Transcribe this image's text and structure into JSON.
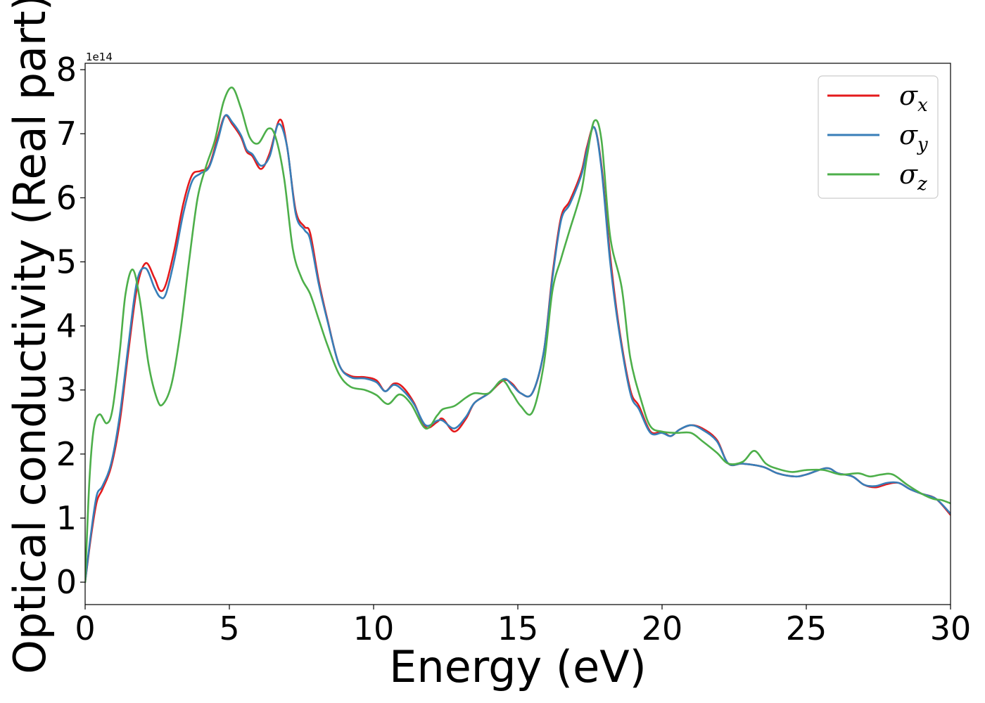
{
  "chart_data": {
    "type": "line",
    "title": "",
    "xlabel": "Energy (eV)",
    "ylabel": "Optical conductivity (Real part)",
    "y_offset_label": "1e14",
    "xlim": [
      0,
      30
    ],
    "ylim": [
      -0.35,
      8.1
    ],
    "x_ticks": [
      0,
      5,
      10,
      15,
      20,
      25,
      30
    ],
    "x_tick_labels": [
      "0",
      "5",
      "10",
      "15",
      "20",
      "25",
      "30"
    ],
    "y_ticks": [
      0,
      1,
      2,
      3,
      4,
      5,
      6,
      7,
      8
    ],
    "y_tick_labels": [
      "0",
      "1",
      "2",
      "3",
      "4",
      "5",
      "6",
      "7",
      "8"
    ],
    "grid": false,
    "legend_position": "top-right",
    "series": [
      {
        "name_base": "σ",
        "name_sub": "x",
        "color": "#e41a1c",
        "points": [
          [
            0,
            0
          ],
          [
            0.2,
            0.7
          ],
          [
            0.4,
            1.25
          ],
          [
            0.6,
            1.45
          ],
          [
            0.9,
            1.8
          ],
          [
            1.2,
            2.5
          ],
          [
            1.5,
            3.6
          ],
          [
            1.8,
            4.6
          ],
          [
            2.1,
            4.98
          ],
          [
            2.4,
            4.75
          ],
          [
            2.6,
            4.55
          ],
          [
            2.8,
            4.65
          ],
          [
            3.1,
            5.2
          ],
          [
            3.4,
            5.9
          ],
          [
            3.7,
            6.35
          ],
          [
            4.0,
            6.42
          ],
          [
            4.3,
            6.5
          ],
          [
            4.6,
            6.95
          ],
          [
            4.85,
            7.28
          ],
          [
            5.1,
            7.15
          ],
          [
            5.4,
            6.95
          ],
          [
            5.6,
            6.72
          ],
          [
            5.8,
            6.65
          ],
          [
            6.1,
            6.45
          ],
          [
            6.4,
            6.7
          ],
          [
            6.75,
            7.22
          ],
          [
            7.0,
            6.8
          ],
          [
            7.3,
            5.8
          ],
          [
            7.6,
            5.55
          ],
          [
            7.8,
            5.45
          ],
          [
            8.1,
            4.7
          ],
          [
            8.4,
            4.1
          ],
          [
            8.8,
            3.4
          ],
          [
            9.2,
            3.22
          ],
          [
            9.7,
            3.2
          ],
          [
            10.1,
            3.15
          ],
          [
            10.4,
            2.98
          ],
          [
            10.7,
            3.1
          ],
          [
            11.0,
            3.05
          ],
          [
            11.4,
            2.8
          ],
          [
            11.8,
            2.42
          ],
          [
            12.2,
            2.5
          ],
          [
            12.4,
            2.55
          ],
          [
            12.8,
            2.35
          ],
          [
            13.2,
            2.55
          ],
          [
            13.5,
            2.8
          ],
          [
            14.0,
            2.95
          ],
          [
            14.5,
            3.15
          ],
          [
            14.8,
            3.1
          ],
          [
            15.1,
            2.95
          ],
          [
            15.5,
            2.95
          ],
          [
            15.9,
            3.6
          ],
          [
            16.2,
            4.8
          ],
          [
            16.5,
            5.7
          ],
          [
            16.8,
            5.95
          ],
          [
            17.2,
            6.4
          ],
          [
            17.4,
            6.8
          ],
          [
            17.65,
            7.1
          ],
          [
            17.9,
            6.5
          ],
          [
            18.2,
            5.1
          ],
          [
            18.5,
            4.0
          ],
          [
            18.9,
            3.0
          ],
          [
            19.2,
            2.75
          ],
          [
            19.6,
            2.35
          ],
          [
            20.0,
            2.35
          ],
          [
            20.3,
            2.28
          ],
          [
            20.6,
            2.38
          ],
          [
            21.0,
            2.45
          ],
          [
            21.4,
            2.4
          ],
          [
            21.9,
            2.22
          ],
          [
            22.3,
            1.85
          ],
          [
            22.8,
            1.85
          ],
          [
            23.5,
            1.8
          ],
          [
            24.0,
            1.7
          ],
          [
            24.6,
            1.65
          ],
          [
            25.0,
            1.68
          ],
          [
            25.7,
            1.78
          ],
          [
            26.1,
            1.7
          ],
          [
            26.6,
            1.65
          ],
          [
            27.0,
            1.52
          ],
          [
            27.4,
            1.48
          ],
          [
            27.8,
            1.53
          ],
          [
            28.2,
            1.55
          ],
          [
            28.6,
            1.45
          ],
          [
            29.0,
            1.38
          ],
          [
            29.5,
            1.3
          ],
          [
            30.0,
            1.05
          ]
        ]
      },
      {
        "name_base": "σ",
        "name_sub": "y",
        "color": "#377eb8",
        "points": [
          [
            0,
            0
          ],
          [
            0.2,
            0.75
          ],
          [
            0.4,
            1.35
          ],
          [
            0.6,
            1.5
          ],
          [
            0.9,
            1.85
          ],
          [
            1.2,
            2.6
          ],
          [
            1.5,
            3.7
          ],
          [
            1.8,
            4.7
          ],
          [
            2.1,
            4.9
          ],
          [
            2.4,
            4.6
          ],
          [
            2.6,
            4.45
          ],
          [
            2.8,
            4.5
          ],
          [
            3.1,
            5.05
          ],
          [
            3.4,
            5.75
          ],
          [
            3.7,
            6.25
          ],
          [
            4.0,
            6.38
          ],
          [
            4.3,
            6.48
          ],
          [
            4.6,
            6.9
          ],
          [
            4.85,
            7.28
          ],
          [
            5.1,
            7.18
          ],
          [
            5.4,
            6.98
          ],
          [
            5.6,
            6.75
          ],
          [
            5.8,
            6.68
          ],
          [
            6.1,
            6.5
          ],
          [
            6.4,
            6.65
          ],
          [
            6.7,
            7.15
          ],
          [
            7.0,
            6.8
          ],
          [
            7.3,
            5.75
          ],
          [
            7.6,
            5.5
          ],
          [
            7.8,
            5.35
          ],
          [
            8.1,
            4.65
          ],
          [
            8.4,
            4.08
          ],
          [
            8.8,
            3.4
          ],
          [
            9.2,
            3.2
          ],
          [
            9.7,
            3.18
          ],
          [
            10.1,
            3.12
          ],
          [
            10.4,
            2.98
          ],
          [
            10.7,
            3.08
          ],
          [
            11.0,
            3.0
          ],
          [
            11.4,
            2.78
          ],
          [
            11.8,
            2.45
          ],
          [
            12.2,
            2.52
          ],
          [
            12.4,
            2.52
          ],
          [
            12.8,
            2.4
          ],
          [
            13.2,
            2.58
          ],
          [
            13.5,
            2.8
          ],
          [
            14.0,
            2.95
          ],
          [
            14.5,
            3.17
          ],
          [
            14.8,
            3.08
          ],
          [
            15.1,
            2.95
          ],
          [
            15.5,
            2.95
          ],
          [
            15.9,
            3.6
          ],
          [
            16.2,
            4.75
          ],
          [
            16.5,
            5.65
          ],
          [
            16.8,
            5.9
          ],
          [
            17.2,
            6.35
          ],
          [
            17.4,
            6.75
          ],
          [
            17.65,
            7.1
          ],
          [
            17.9,
            6.45
          ],
          [
            18.2,
            5.0
          ],
          [
            18.5,
            3.95
          ],
          [
            18.9,
            2.95
          ],
          [
            19.2,
            2.7
          ],
          [
            19.6,
            2.33
          ],
          [
            20.0,
            2.33
          ],
          [
            20.3,
            2.28
          ],
          [
            20.6,
            2.38
          ],
          [
            21.0,
            2.45
          ],
          [
            21.4,
            2.38
          ],
          [
            21.9,
            2.2
          ],
          [
            22.3,
            1.85
          ],
          [
            22.8,
            1.85
          ],
          [
            23.5,
            1.8
          ],
          [
            24.0,
            1.7
          ],
          [
            24.6,
            1.65
          ],
          [
            25.0,
            1.68
          ],
          [
            25.7,
            1.78
          ],
          [
            26.1,
            1.7
          ],
          [
            26.6,
            1.65
          ],
          [
            27.0,
            1.52
          ],
          [
            27.4,
            1.5
          ],
          [
            27.8,
            1.55
          ],
          [
            28.2,
            1.55
          ],
          [
            28.6,
            1.45
          ],
          [
            29.0,
            1.38
          ],
          [
            29.5,
            1.3
          ],
          [
            30.0,
            1.07
          ]
        ]
      },
      {
        "name_base": "σ",
        "name_sub": "z",
        "color": "#4daf4a",
        "points": [
          [
            0,
            0
          ],
          [
            0.15,
            1.6
          ],
          [
            0.3,
            2.4
          ],
          [
            0.5,
            2.62
          ],
          [
            0.75,
            2.48
          ],
          [
            0.95,
            2.7
          ],
          [
            1.2,
            3.6
          ],
          [
            1.4,
            4.5
          ],
          [
            1.65,
            4.88
          ],
          [
            1.9,
            4.4
          ],
          [
            2.2,
            3.4
          ],
          [
            2.5,
            2.85
          ],
          [
            2.7,
            2.78
          ],
          [
            3.0,
            3.1
          ],
          [
            3.3,
            3.9
          ],
          [
            3.6,
            5.0
          ],
          [
            3.9,
            6.0
          ],
          [
            4.2,
            6.5
          ],
          [
            4.5,
            6.9
          ],
          [
            4.8,
            7.5
          ],
          [
            5.1,
            7.72
          ],
          [
            5.4,
            7.4
          ],
          [
            5.7,
            6.95
          ],
          [
            6.0,
            6.85
          ],
          [
            6.35,
            7.08
          ],
          [
            6.6,
            6.95
          ],
          [
            6.9,
            6.3
          ],
          [
            7.2,
            5.2
          ],
          [
            7.5,
            4.75
          ],
          [
            7.8,
            4.5
          ],
          [
            8.1,
            4.1
          ],
          [
            8.4,
            3.7
          ],
          [
            8.8,
            3.25
          ],
          [
            9.2,
            3.05
          ],
          [
            9.7,
            3.0
          ],
          [
            10.1,
            2.92
          ],
          [
            10.5,
            2.78
          ],
          [
            10.9,
            2.93
          ],
          [
            11.3,
            2.78
          ],
          [
            11.8,
            2.4
          ],
          [
            12.2,
            2.6
          ],
          [
            12.4,
            2.7
          ],
          [
            12.8,
            2.75
          ],
          [
            13.2,
            2.88
          ],
          [
            13.5,
            2.95
          ],
          [
            14.0,
            2.95
          ],
          [
            14.45,
            3.15
          ],
          [
            14.8,
            2.95
          ],
          [
            15.1,
            2.75
          ],
          [
            15.5,
            2.65
          ],
          [
            15.9,
            3.4
          ],
          [
            16.2,
            4.55
          ],
          [
            16.5,
            5.05
          ],
          [
            16.8,
            5.5
          ],
          [
            17.2,
            6.1
          ],
          [
            17.4,
            6.65
          ],
          [
            17.65,
            7.2
          ],
          [
            17.9,
            6.9
          ],
          [
            18.2,
            5.4
          ],
          [
            18.6,
            4.6
          ],
          [
            18.9,
            3.5
          ],
          [
            19.3,
            2.8
          ],
          [
            19.6,
            2.43
          ],
          [
            20.0,
            2.35
          ],
          [
            20.5,
            2.33
          ],
          [
            21.0,
            2.33
          ],
          [
            21.4,
            2.2
          ],
          [
            21.9,
            2.02
          ],
          [
            22.3,
            1.85
          ],
          [
            22.8,
            1.88
          ],
          [
            23.2,
            2.05
          ],
          [
            23.6,
            1.85
          ],
          [
            24.0,
            1.77
          ],
          [
            24.5,
            1.72
          ],
          [
            25.0,
            1.75
          ],
          [
            25.6,
            1.75
          ],
          [
            26.2,
            1.68
          ],
          [
            26.8,
            1.7
          ],
          [
            27.2,
            1.65
          ],
          [
            27.6,
            1.68
          ],
          [
            28.0,
            1.68
          ],
          [
            28.5,
            1.52
          ],
          [
            29.0,
            1.38
          ],
          [
            29.4,
            1.3
          ],
          [
            29.7,
            1.28
          ],
          [
            30.0,
            1.23
          ]
        ]
      }
    ]
  }
}
